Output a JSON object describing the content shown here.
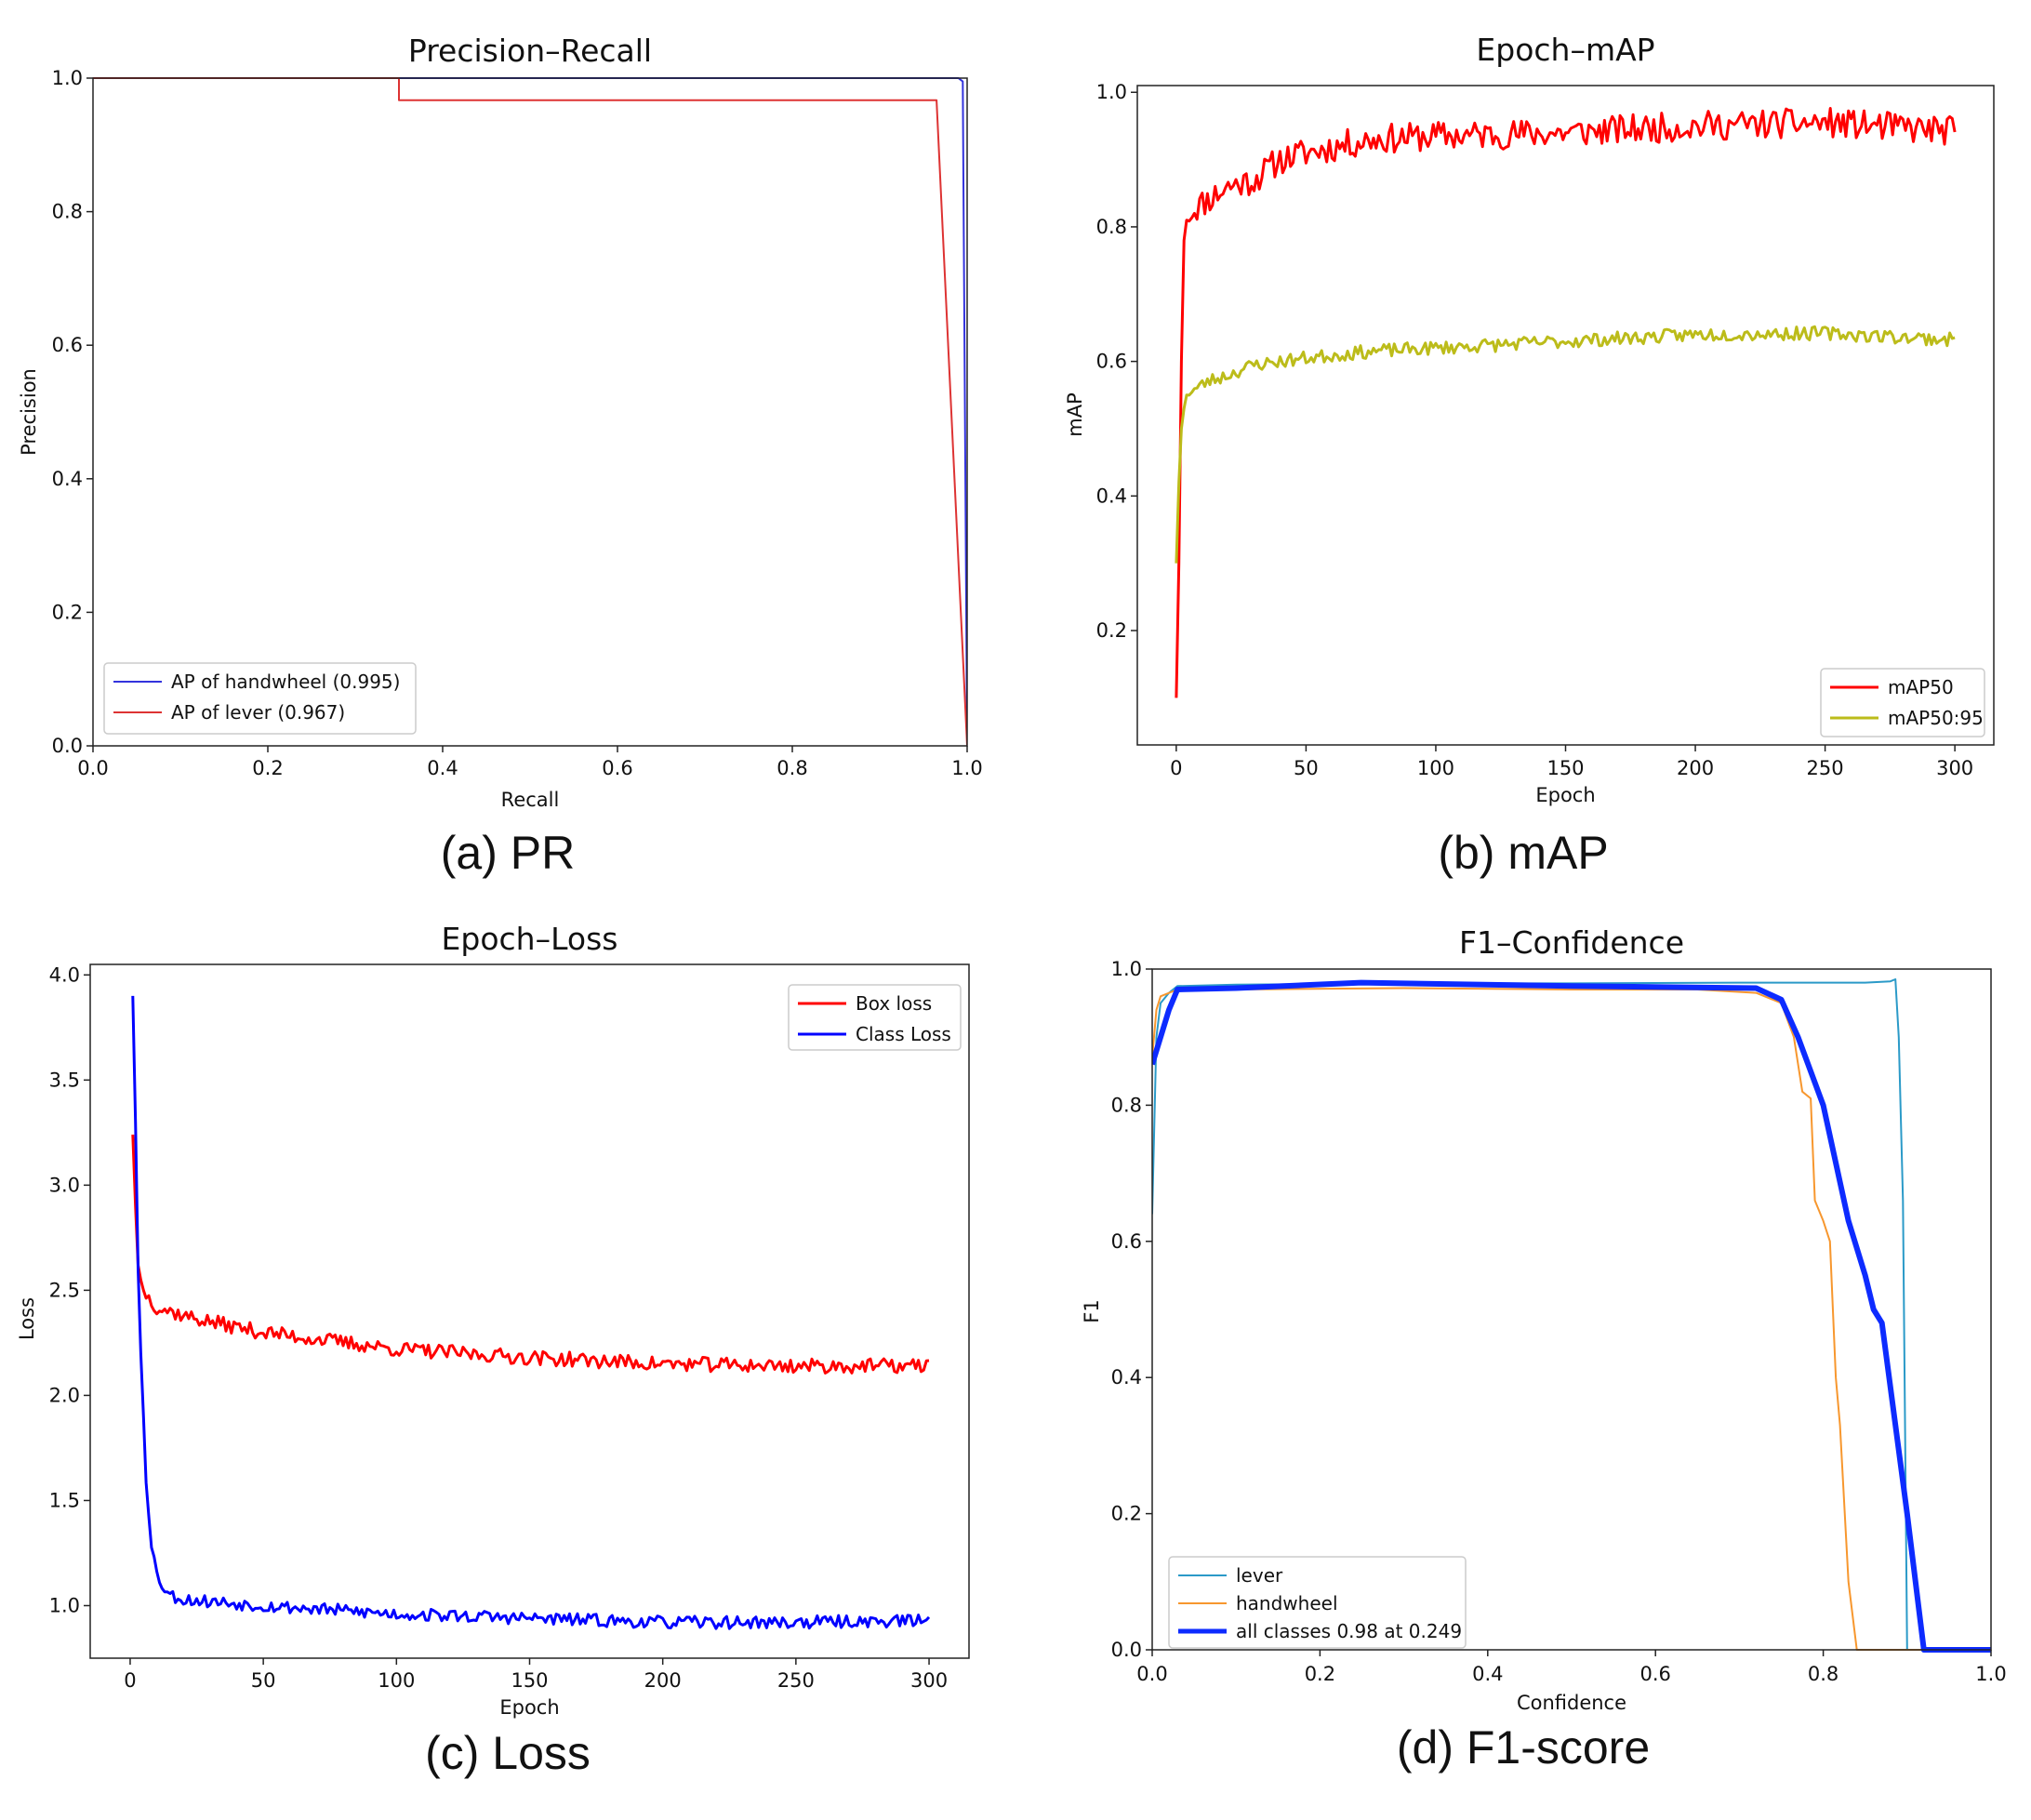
{
  "figure": {
    "captions": [
      "(a) PR",
      "(b) mAP",
      "(c) Loss",
      "(d) F1-score"
    ]
  },
  "colors": {
    "handwheel_pr": "#3333dd",
    "lever_pr": "#dd3333",
    "map50": "#ff0000",
    "map5095": "#bcbc1a",
    "box_loss": "#ff0000",
    "class_loss": "#0000ff",
    "f1_lever": "#2b9ac8",
    "f1_handwheel": "#f7972e",
    "f1_all": "#0d2bff"
  },
  "chart_data": [
    {
      "type": "line",
      "title": "Precision–Recall",
      "xlabel": "Recall",
      "ylabel": "Precision",
      "xlim": [
        0,
        1
      ],
      "ylim": [
        0,
        1
      ],
      "xticks": [
        "0.0",
        "0.2",
        "0.4",
        "0.6",
        "0.8",
        "1.0"
      ],
      "yticks": [
        "0.0",
        "0.2",
        "0.4",
        "0.6",
        "0.8",
        "1.0"
      ],
      "legend_position": "lower-left",
      "series": [
        {
          "name": "AP of handwheel (0.995)",
          "color_key": "handwheel_pr",
          "width": 2,
          "x": [
            0,
            0.99,
            0.995,
            1.0
          ],
          "y": [
            1.0,
            1.0,
            0.995,
            0.0
          ]
        },
        {
          "name": "AP of lever (0.967)",
          "color_key": "lever_pr",
          "width": 2,
          "x": [
            0,
            0.35,
            0.35,
            0.965,
            1.0
          ],
          "y": [
            1.0,
            1.0,
            0.967,
            0.967,
            0.0
          ]
        }
      ]
    },
    {
      "type": "line",
      "title": "Epoch–mAP",
      "xlabel": "Epoch",
      "ylabel": "mAP",
      "xlim": [
        -15,
        315
      ],
      "ylim": [
        0.03,
        1.01
      ],
      "xticks": [
        "0",
        "50",
        "100",
        "150",
        "200",
        "250",
        "300"
      ],
      "yticks": [
        "0.2",
        "0.4",
        "0.6",
        "0.8",
        "1.0"
      ],
      "legend_position": "lower-right",
      "series": [
        {
          "name": "mAP50",
          "color_key": "map50",
          "width": 3,
          "noise": 0.022,
          "seed": 11,
          "x": [
            0,
            1,
            2,
            3,
            4,
            5,
            8,
            12,
            20,
            30,
            40,
            50,
            75,
            100,
            150,
            200,
            250,
            300
          ],
          "y": [
            0.1,
            0.3,
            0.6,
            0.78,
            0.81,
            0.82,
            0.83,
            0.84,
            0.86,
            0.87,
            0.9,
            0.91,
            0.93,
            0.935,
            0.94,
            0.95,
            0.955,
            0.942
          ]
        },
        {
          "name": "mAP50:95",
          "color_key": "map5095",
          "width": 3,
          "noise": 0.01,
          "seed": 23,
          "x": [
            0,
            1,
            2,
            3,
            4,
            5,
            8,
            12,
            20,
            30,
            50,
            75,
            100,
            150,
            200,
            250,
            300
          ],
          "y": [
            0.3,
            0.42,
            0.5,
            0.53,
            0.55,
            0.555,
            0.56,
            0.57,
            0.58,
            0.595,
            0.605,
            0.615,
            0.62,
            0.63,
            0.64,
            0.642,
            0.632
          ]
        }
      ]
    },
    {
      "type": "line",
      "title": "Epoch–Loss",
      "xlabel": "Epoch",
      "ylabel": "Loss",
      "xlim": [
        -15,
        315
      ],
      "ylim": [
        0.75,
        4.05
      ],
      "xticks": [
        "0",
        "50",
        "100",
        "150",
        "200",
        "250",
        "300"
      ],
      "yticks": [
        "1.0",
        "1.5",
        "2.0",
        "2.5",
        "3.0",
        "3.5",
        "4.0"
      ],
      "legend_position": "upper-right",
      "series": [
        {
          "name": "Box loss",
          "color_key": "box_loss",
          "width": 3,
          "noise": 0.035,
          "seed": 37,
          "x": [
            1,
            2,
            3,
            4,
            5,
            6,
            8,
            10,
            15,
            20,
            30,
            50,
            75,
            100,
            150,
            200,
            250,
            300
          ],
          "y": [
            3.24,
            2.9,
            2.62,
            2.55,
            2.5,
            2.48,
            2.45,
            2.42,
            2.4,
            2.38,
            2.35,
            2.3,
            2.26,
            2.22,
            2.18,
            2.15,
            2.14,
            2.14
          ]
        },
        {
          "name": "Class Loss",
          "color_key": "class_loss",
          "width": 3,
          "noise": 0.03,
          "seed": 53,
          "x": [
            1,
            2,
            3,
            4,
            5,
            6,
            7,
            8,
            10,
            12,
            15,
            20,
            30,
            50,
            75,
            100,
            150,
            200,
            250,
            300
          ],
          "y": [
            3.9,
            3.3,
            2.6,
            2.2,
            1.9,
            1.6,
            1.45,
            1.3,
            1.15,
            1.1,
            1.05,
            1.03,
            1.02,
            1.0,
            0.98,
            0.96,
            0.94,
            0.92,
            0.92,
            0.93
          ]
        }
      ]
    },
    {
      "type": "line",
      "title": "F1–Confidence",
      "xlabel": "Confidence",
      "ylabel": "F1",
      "xlim": [
        0,
        1
      ],
      "ylim": [
        0,
        1
      ],
      "xticks": [
        "0.0",
        "0.2",
        "0.4",
        "0.6",
        "0.8",
        "1.0"
      ],
      "yticks": [
        "0.0",
        "0.2",
        "0.4",
        "0.6",
        "0.8",
        "1.0"
      ],
      "legend_position": "lower-left",
      "series": [
        {
          "name": "lever",
          "color_key": "f1_lever",
          "width": 2,
          "x": [
            0,
            0.005,
            0.01,
            0.02,
            0.03,
            0.1,
            0.3,
            0.5,
            0.7,
            0.85,
            0.88,
            0.886,
            0.89,
            0.895,
            0.9,
            1.0
          ],
          "y": [
            0.64,
            0.9,
            0.95,
            0.965,
            0.975,
            0.977,
            0.979,
            0.979,
            0.98,
            0.98,
            0.982,
            0.985,
            0.9,
            0.66,
            0.0,
            0.0
          ]
        },
        {
          "name": "handwheel",
          "color_key": "f1_handwheel",
          "width": 2,
          "x": [
            0,
            0.005,
            0.01,
            0.03,
            0.1,
            0.3,
            0.5,
            0.65,
            0.72,
            0.75,
            0.765,
            0.775,
            0.785,
            0.79,
            0.8,
            0.808,
            0.815,
            0.82,
            0.83,
            0.84,
            1.0
          ],
          "y": [
            0.87,
            0.94,
            0.96,
            0.97,
            0.97,
            0.972,
            0.97,
            0.97,
            0.965,
            0.95,
            0.9,
            0.82,
            0.81,
            0.66,
            0.63,
            0.6,
            0.4,
            0.33,
            0.1,
            0.0,
            0.0
          ]
        },
        {
          "name": "all classes 0.98 at 0.249",
          "color_key": "f1_all",
          "width": 6,
          "x": [
            0,
            0.01,
            0.02,
            0.03,
            0.1,
            0.249,
            0.5,
            0.72,
            0.75,
            0.77,
            0.8,
            0.83,
            0.85,
            0.86,
            0.87,
            0.9,
            0.92,
            0.95,
            1.0
          ],
          "y": [
            0.86,
            0.9,
            0.94,
            0.97,
            0.972,
            0.98,
            0.975,
            0.972,
            0.955,
            0.9,
            0.8,
            0.63,
            0.55,
            0.5,
            0.48,
            0.2,
            0.0,
            0.0,
            0.0
          ]
        }
      ]
    }
  ]
}
